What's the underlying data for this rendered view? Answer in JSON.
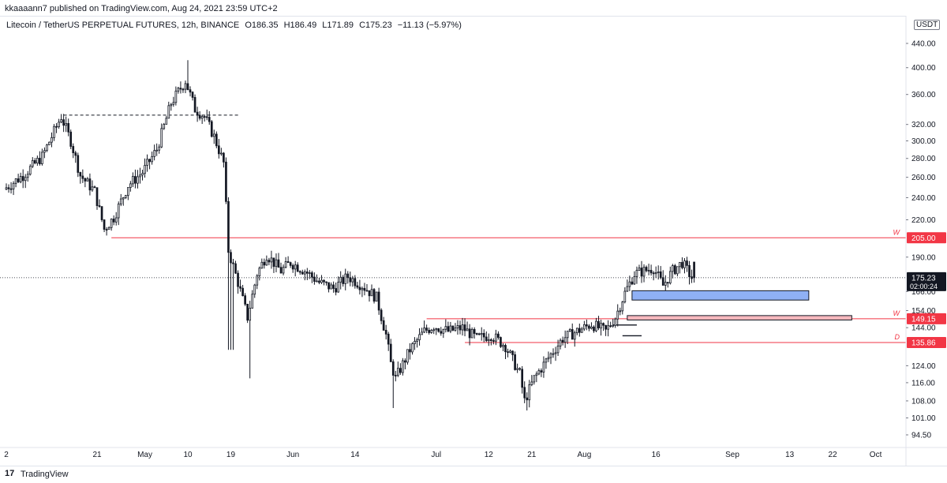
{
  "header": {
    "published": "kkaaaann7 published on TradingView.com, Aug 24, 2021 23:59 UTC+2"
  },
  "legend": {
    "symbol": "Litecoin / TetherUS PERPETUAL FUTURES, 12h, BINANCE",
    "open": "O186.35",
    "high": "H186.49",
    "low": "L171.89",
    "close": "C175.23",
    "change": "−11.13 (−5.97%)"
  },
  "currency_badge": "USDT",
  "footer": {
    "logo": "17",
    "brand": "TradingView"
  },
  "colors": {
    "up": "#26a69a",
    "down": "#ef5350",
    "candle": "#131722",
    "resistance": "#f23645",
    "blue_zone": "#8fb0f5",
    "red_zone": "#f5b8bd"
  },
  "chart_data": {
    "type": "candlestick",
    "title": "",
    "y_scale": "log",
    "y_ticks": [
      "440.00",
      "400.00",
      "360.00",
      "320.00",
      "300.00",
      "280.00",
      "260.00",
      "240.00",
      "220.00",
      "190.00",
      "166.00",
      "154.00",
      "144.00",
      "124.00",
      "116.00",
      "108.00",
      "101.00",
      "94.50"
    ],
    "x_ticks": [
      {
        "label": "2",
        "date": "2021-04-02"
      },
      {
        "label": "21",
        "date": "2021-04-21"
      },
      {
        "label": "May",
        "date": "2021-05-01"
      },
      {
        "label": "10",
        "date": "2021-05-10"
      },
      {
        "label": "19",
        "date": "2021-05-19"
      },
      {
        "label": "Jun",
        "date": "2021-06-01"
      },
      {
        "label": "14",
        "date": "2021-06-14"
      },
      {
        "label": "Jul",
        "date": "2021-07-01"
      },
      {
        "label": "12",
        "date": "2021-07-12"
      },
      {
        "label": "21",
        "date": "2021-07-21"
      },
      {
        "label": "Aug",
        "date": "2021-08-01"
      },
      {
        "label": "16",
        "date": "2021-08-16"
      },
      {
        "label": "Sep",
        "date": "2021-09-01"
      },
      {
        "label": "13",
        "date": "2021-09-13"
      },
      {
        "label": "22",
        "date": "2021-09-22"
      },
      {
        "label": "Oct",
        "date": "2021-10-01"
      }
    ],
    "price_path": [
      {
        "date": "2021-04-02",
        "price": 248
      },
      {
        "date": "2021-04-06",
        "price": 262
      },
      {
        "date": "2021-04-10",
        "price": 282
      },
      {
        "date": "2021-04-14",
        "price": 330
      },
      {
        "date": "2021-04-16",
        "price": 300
      },
      {
        "date": "2021-04-18",
        "price": 262
      },
      {
        "date": "2021-04-21",
        "price": 246
      },
      {
        "date": "2021-04-23",
        "price": 212
      },
      {
        "date": "2021-04-25",
        "price": 222
      },
      {
        "date": "2021-04-28",
        "price": 252
      },
      {
        "date": "2021-05-01",
        "price": 265
      },
      {
        "date": "2021-05-04",
        "price": 290
      },
      {
        "date": "2021-05-07",
        "price": 348
      },
      {
        "date": "2021-05-10",
        "price": 380
      },
      {
        "date": "2021-05-12",
        "price": 340
      },
      {
        "date": "2021-05-14",
        "price": 330
      },
      {
        "date": "2021-05-16",
        "price": 305
      },
      {
        "date": "2021-05-18",
        "price": 275
      },
      {
        "date": "2021-05-19",
        "price": 195
      },
      {
        "date": "2021-05-21",
        "price": 172
      },
      {
        "date": "2021-05-23",
        "price": 150
      },
      {
        "date": "2021-05-25",
        "price": 178
      },
      {
        "date": "2021-05-27",
        "price": 192
      },
      {
        "date": "2021-05-30",
        "price": 180
      },
      {
        "date": "2021-06-01",
        "price": 186
      },
      {
        "date": "2021-06-04",
        "price": 180
      },
      {
        "date": "2021-06-07",
        "price": 172
      },
      {
        "date": "2021-06-10",
        "price": 168
      },
      {
        "date": "2021-06-13",
        "price": 176
      },
      {
        "date": "2021-06-16",
        "price": 170
      },
      {
        "date": "2021-06-19",
        "price": 162
      },
      {
        "date": "2021-06-21",
        "price": 140
      },
      {
        "date": "2021-06-22",
        "price": 125
      },
      {
        "date": "2021-06-23",
        "price": 118
      },
      {
        "date": "2021-06-26",
        "price": 132
      },
      {
        "date": "2021-06-29",
        "price": 142
      },
      {
        "date": "2021-07-01",
        "price": 145
      },
      {
        "date": "2021-07-04",
        "price": 142
      },
      {
        "date": "2021-07-07",
        "price": 144
      },
      {
        "date": "2021-07-10",
        "price": 138
      },
      {
        "date": "2021-07-13",
        "price": 140
      },
      {
        "date": "2021-07-16",
        "price": 134
      },
      {
        "date": "2021-07-19",
        "price": 120
      },
      {
        "date": "2021-07-20",
        "price": 108
      },
      {
        "date": "2021-07-22",
        "price": 118
      },
      {
        "date": "2021-07-25",
        "price": 128
      },
      {
        "date": "2021-07-28",
        "price": 138
      },
      {
        "date": "2021-07-31",
        "price": 142
      },
      {
        "date": "2021-08-03",
        "price": 146
      },
      {
        "date": "2021-08-06",
        "price": 142
      },
      {
        "date": "2021-08-08",
        "price": 150
      },
      {
        "date": "2021-08-10",
        "price": 165
      },
      {
        "date": "2021-08-12",
        "price": 178
      },
      {
        "date": "2021-08-14",
        "price": 180
      },
      {
        "date": "2021-08-16",
        "price": 182
      },
      {
        "date": "2021-08-18",
        "price": 170
      },
      {
        "date": "2021-08-20",
        "price": 180
      },
      {
        "date": "2021-08-22",
        "price": 186
      },
      {
        "date": "2021-08-24",
        "price": 175.23
      }
    ],
    "level_lines": [
      {
        "price": 205.0,
        "label": "205.00",
        "tag": "W",
        "start": "2021-04-24"
      },
      {
        "price": 149.15,
        "label": "149.15",
        "tag": "W",
        "start": "2021-06-29"
      },
      {
        "price": 135.86,
        "label": "135.86",
        "tag": "D",
        "start": "2021-07-07"
      }
    ],
    "dashed_line": {
      "price": 332,
      "start": "2021-04-14",
      "end": "2021-05-21"
    },
    "current_price": {
      "price": 175.23,
      "label": "175.23",
      "timer": "02:00:24"
    },
    "zones": [
      {
        "type": "blue",
        "top": 166.5,
        "bottom": 160.5,
        "start": "2021-08-11",
        "end": "2021-09-17"
      },
      {
        "type": "red",
        "top": 151.0,
        "bottom": 148.4,
        "start": "2021-08-10",
        "end": "2021-09-26"
      }
    ],
    "small_lines": [
      {
        "price": 145.5,
        "start": "2021-08-07",
        "end": "2021-08-12"
      },
      {
        "price": 139.5,
        "start": "2021-08-09",
        "end": "2021-08-13"
      }
    ]
  }
}
